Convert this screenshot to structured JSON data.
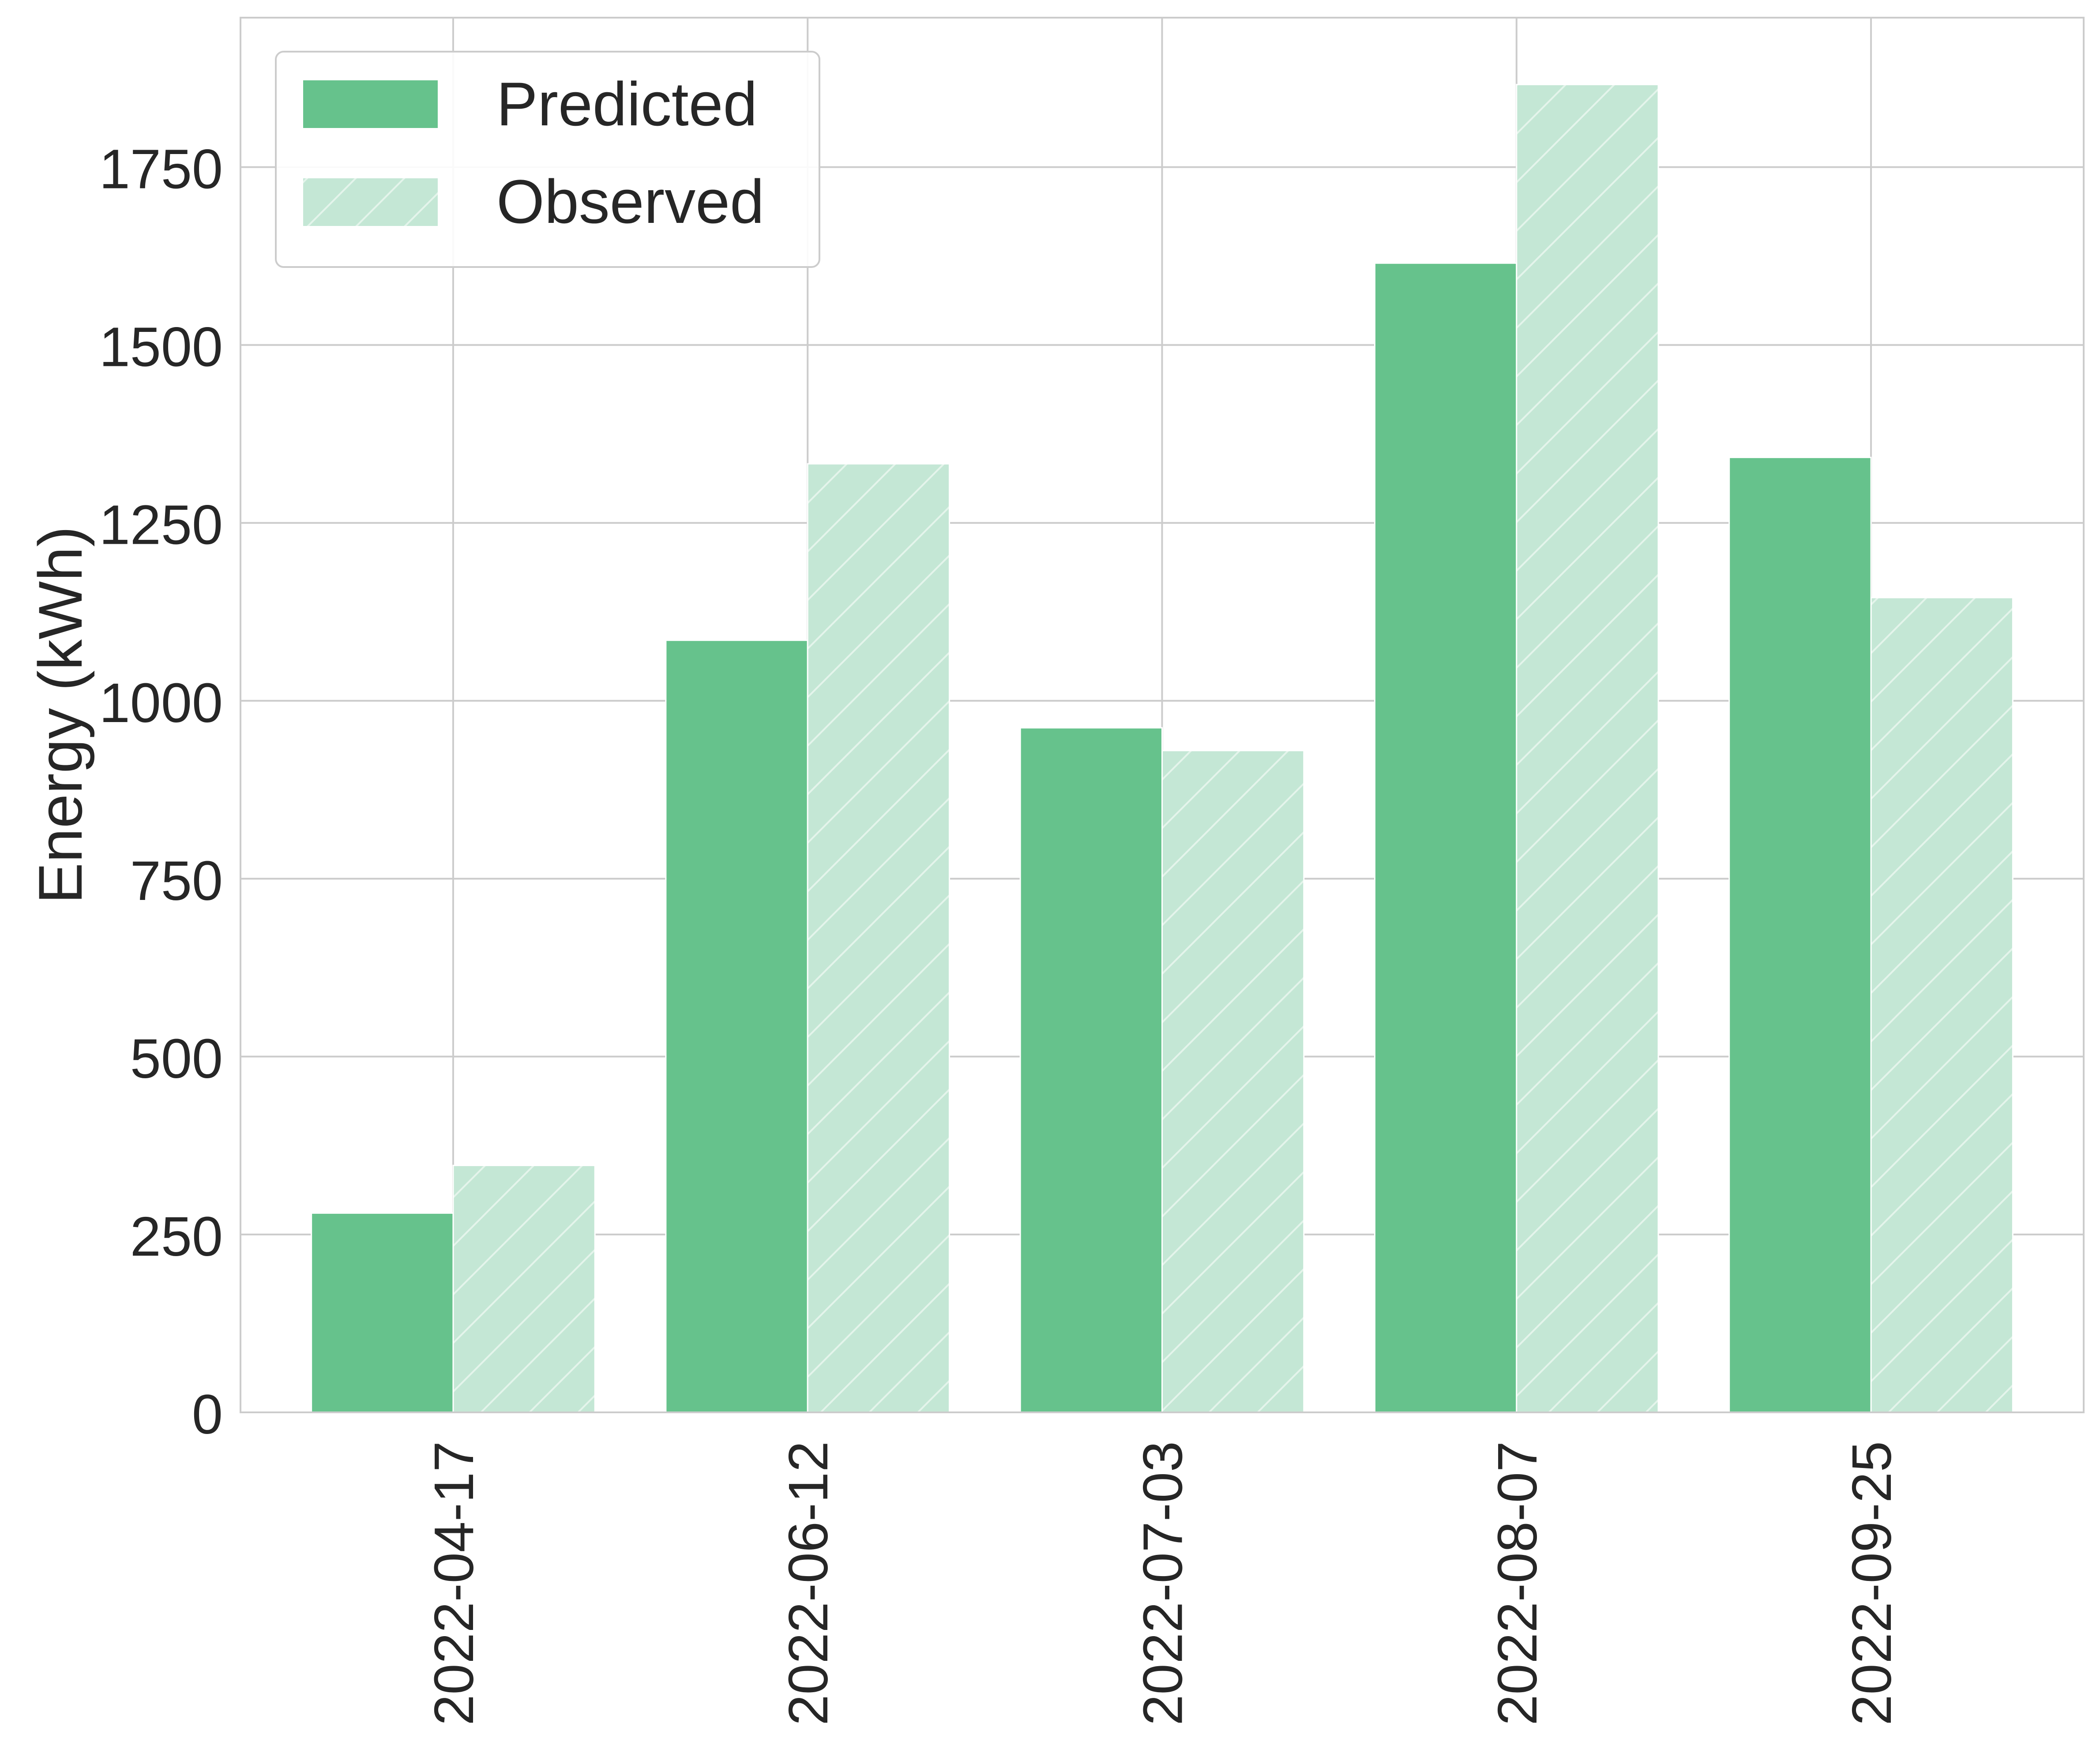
{
  "chart_data": {
    "type": "bar",
    "title": "",
    "xlabel": "",
    "ylabel": "Energy (kWh)",
    "categories": [
      "2022-04-17",
      "2022-06-12",
      "2022-07-03",
      "2022-08-07",
      "2022-09-25"
    ],
    "series": [
      {
        "name": "Predicted",
        "values": [
          280,
          1085,
          962,
          1615,
          1342
        ],
        "color": "#66c28c"
      },
      {
        "name": "Observed",
        "values": [
          347,
          1333,
          930,
          1866,
          1145
        ],
        "color": "#c4e7d5",
        "hatch": "diagonal"
      }
    ],
    "ylim": [
      0,
      1960
    ],
    "yticks": [
      0,
      250,
      500,
      750,
      1000,
      1250,
      1500,
      1750
    ],
    "ytick_labels": [
      "0",
      "250",
      "500",
      "750",
      "1000",
      "1250",
      "1500",
      "1750"
    ],
    "grid": true,
    "legend_position": "top-left",
    "x_tick_rotation": "vertical"
  }
}
